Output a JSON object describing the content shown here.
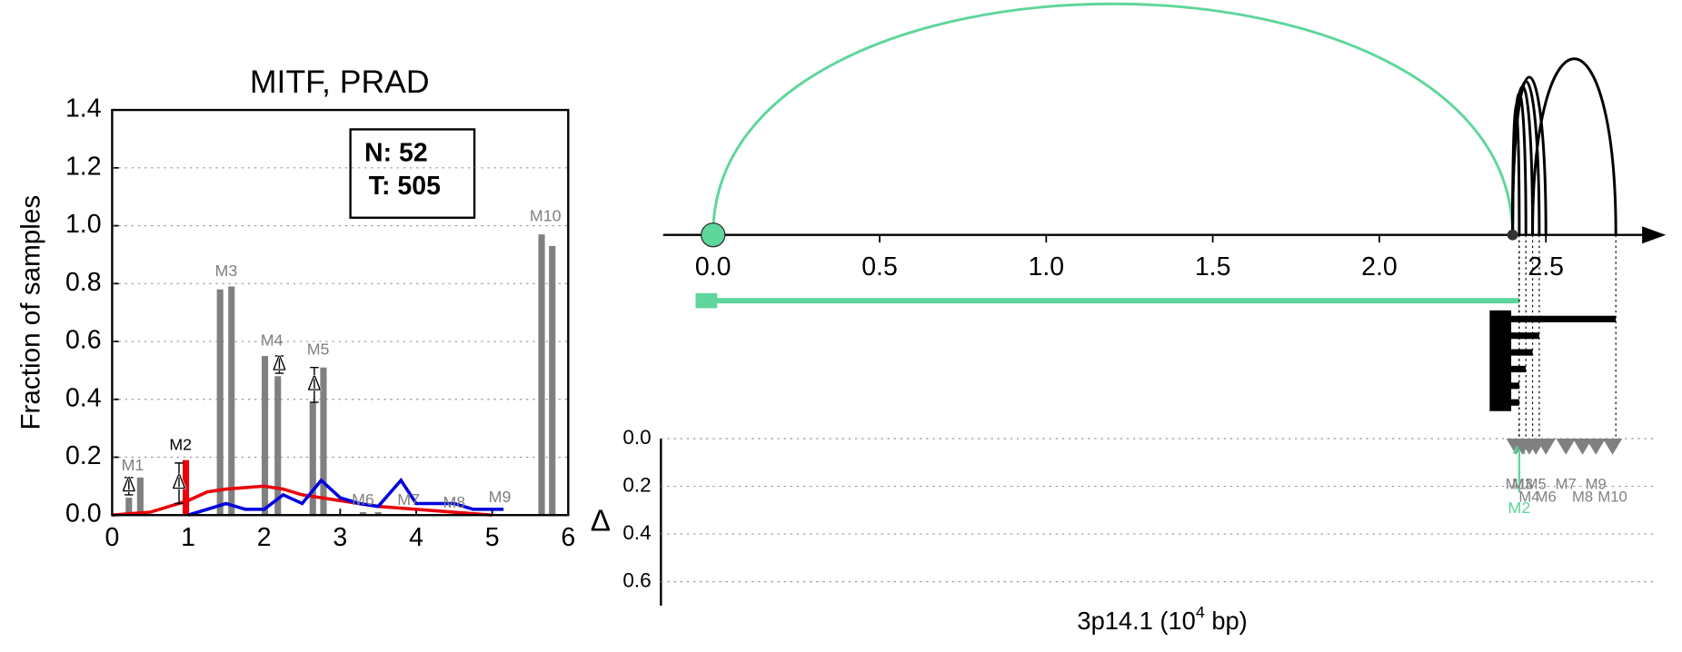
{
  "chart_data": [
    {
      "type": "bar",
      "title": "MITF, PRAD",
      "ylabel": "Fraction of samples",
      "xlim": [
        0,
        6
      ],
      "ylim": [
        0,
        1.4
      ],
      "xticks": [
        0,
        1,
        2,
        3,
        4,
        5,
        6
      ],
      "yticks": [
        {
          "value": 0,
          "label": "0.0"
        },
        {
          "value": 0.2,
          "label": "0.2"
        },
        {
          "value": 0.4,
          "label": "0.4"
        },
        {
          "value": 0.6,
          "label": "0.6"
        },
        {
          "value": 0.8,
          "label": "0.8"
        },
        {
          "value": 1.0,
          "label": "1.0"
        },
        {
          "value": 1.2,
          "label": "1.2"
        },
        {
          "value": 1.4,
          "label": "1.4"
        }
      ],
      "grid": true,
      "color": "#808080",
      "bars": {
        "x": [
          0.22,
          0.37,
          1.42,
          1.57,
          2.01,
          2.18,
          2.64,
          2.78,
          3.3,
          3.5,
          5.65,
          5.79
        ],
        "values": [
          0.06,
          0.13,
          0.78,
          0.79,
          0.55,
          0.48,
          0.39,
          0.51,
          0.01,
          0.01,
          0.97,
          0.93
        ]
      },
      "highlight": {
        "x": 0.97,
        "value": 0.19,
        "color": "#e8000b"
      },
      "lines": [
        {
          "color": "#e8000b",
          "x": [
            0,
            0.5,
            1,
            1.25,
            1.5,
            2,
            2.25,
            2.5,
            2.75,
            3,
            3.25,
            3.5,
            4,
            4.5,
            5
          ],
          "values": [
            0,
            0.01,
            0.05,
            0.08,
            0.09,
            0.1,
            0.09,
            0.07,
            0.06,
            0.05,
            0.04,
            0.03,
            0.02,
            0.01,
            0
          ]
        },
        {
          "color": "#0000e0",
          "x": [
            1,
            1.5,
            1.75,
            2,
            2.25,
            2.5,
            2.75,
            3,
            3.25,
            3.5,
            3.8,
            4,
            4.5,
            4.75,
            5.15
          ],
          "values": [
            0,
            0.04,
            0.02,
            0.02,
            0.07,
            0.04,
            0.12,
            0.06,
            0.04,
            0.03,
            0.12,
            0.04,
            0.04,
            0.02,
            0.02
          ]
        }
      ],
      "delta_points": {
        "label": "Δ",
        "x": [
          0.22,
          0.88,
          2.2,
          2.66
        ],
        "values": [
          0.1,
          0.11,
          0.52,
          0.45
        ],
        "errors": [
          0.03,
          0.07,
          0.03,
          0.06
        ]
      },
      "motif_labels": [
        {
          "label": "M1",
          "x": 0.27,
          "y": 0.17,
          "color": "#808080"
        },
        {
          "label": "M2",
          "x": 0.9,
          "y": 0.24,
          "color": "#000000"
        },
        {
          "label": "M3",
          "x": 1.5,
          "y": 0.84,
          "color": "#808080"
        },
        {
          "label": "M4",
          "x": 2.1,
          "y": 0.6,
          "color": "#808080"
        },
        {
          "label": "M5",
          "x": 2.71,
          "y": 0.57,
          "color": "#808080"
        },
        {
          "label": "M6",
          "x": 3.3,
          "y": 0.05,
          "color": "#808080"
        },
        {
          "label": "M7",
          "x": 3.9,
          "y": 0.05,
          "color": "#808080"
        },
        {
          "label": "M8",
          "x": 4.5,
          "y": 0.04,
          "color": "#808080"
        },
        {
          "label": "M9",
          "x": 5.1,
          "y": 0.06,
          "color": "#808080"
        },
        {
          "label": "M10",
          "x": 5.7,
          "y": 1.03,
          "color": "#808080"
        }
      ],
      "info_box": [
        "N: 52",
        "T: 505"
      ]
    },
    {
      "type": "arc",
      "xlim": [
        -0.15,
        2.86
      ],
      "xticks": [
        {
          "value": 0,
          "label": "0.0"
        },
        {
          "value": 0.5,
          "label": "0.5"
        },
        {
          "value": 1.0,
          "label": "1.0"
        },
        {
          "value": 1.5,
          "label": "1.5"
        },
        {
          "value": 2.0,
          "label": "2.0"
        },
        {
          "value": 2.5,
          "label": "2.5"
        }
      ],
      "arcs": [
        {
          "start": 0,
          "end": 2.4,
          "color": "#5fd69b"
        },
        {
          "start": 2.4,
          "end": 2.42,
          "color": "#000000"
        },
        {
          "start": 2.4,
          "end": 2.44,
          "color": "#000000"
        },
        {
          "start": 2.4,
          "end": 2.46,
          "color": "#000000"
        },
        {
          "start": 2.4,
          "end": 2.48,
          "color": "#000000"
        },
        {
          "start": 2.4,
          "end": 2.5,
          "color": "#000000"
        },
        {
          "start": 2.46,
          "end": 2.71,
          "color": "#000000"
        }
      ],
      "segments": [
        {
          "start": -0.02,
          "end": 2.42,
          "color": "#5fd69b"
        },
        {
          "start": 2.37,
          "end": 2.71,
          "color": "#000000"
        },
        {
          "start": 2.37,
          "end": 2.48,
          "color": "#000000"
        },
        {
          "start": 2.37,
          "end": 2.46,
          "color": "#000000"
        },
        {
          "start": 2.37,
          "end": 2.44,
          "color": "#000000"
        },
        {
          "start": 2.37,
          "end": 2.42,
          "color": "#000000"
        },
        {
          "start": 2.37,
          "end": 2.42,
          "color": "#000000"
        }
      ],
      "ylabel": "Δ",
      "ylim": [
        0,
        0.7
      ],
      "yticks": [
        {
          "value": 0,
          "label": "0.0"
        },
        {
          "value": 0.2,
          "label": "0.2"
        },
        {
          "value": 0.4,
          "label": "0.4"
        },
        {
          "value": 0.6,
          "label": "0.6"
        }
      ],
      "motifs": [
        {
          "label": "M1",
          "x": 2.41,
          "color": "#808080"
        },
        {
          "label": "M2",
          "x": 2.42,
          "color": "#5fd69b"
        },
        {
          "label": "M3",
          "x": 2.43,
          "color": "#808080"
        },
        {
          "label": "M4",
          "x": 2.45,
          "color": "#808080"
        },
        {
          "label": "M5",
          "x": 2.47,
          "color": "#808080"
        },
        {
          "label": "M6",
          "x": 2.5,
          "color": "#808080"
        },
        {
          "label": "M7",
          "x": 2.56,
          "color": "#808080"
        },
        {
          "label": "M8",
          "x": 2.61,
          "color": "#808080"
        },
        {
          "label": "M9",
          "x": 2.65,
          "color": "#808080"
        },
        {
          "label": "M10",
          "x": 2.7,
          "color": "#808080"
        }
      ],
      "xlabel": [
        "3p14.1 (10",
        "4",
        " bp)"
      ]
    }
  ]
}
